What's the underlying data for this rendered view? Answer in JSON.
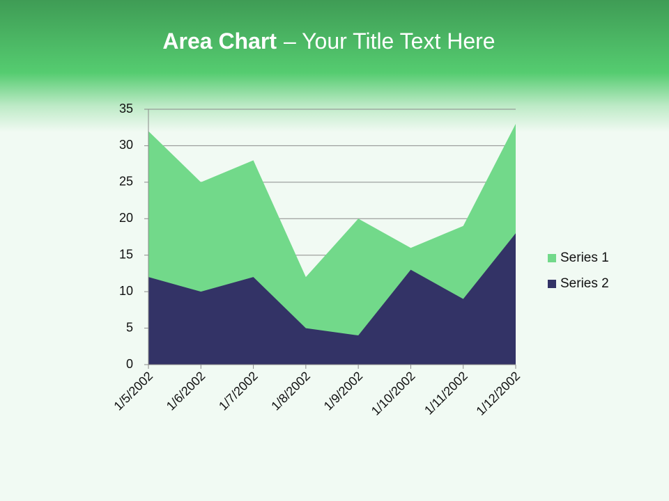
{
  "chart_data": {
    "type": "area",
    "title_parts": [
      "Area Chart",
      "– Your Title Text Here"
    ],
    "categories": [
      "1/5/2002",
      "1/6/2002",
      "1/7/2002",
      "1/8/2002",
      "1/9/2002",
      "1/10/2002",
      "1/11/2002",
      "1/12/2002"
    ],
    "series": [
      {
        "name": "Series 1",
        "color": "#72d98a",
        "values": [
          32,
          25,
          28,
          12,
          20,
          16,
          19,
          33
        ]
      },
      {
        "name": "Series 2",
        "color": "#333366",
        "values": [
          12,
          10,
          12,
          5,
          4,
          13,
          9,
          18
        ]
      }
    ],
    "ylim": [
      0,
      35
    ],
    "yticks": [
      0,
      5,
      10,
      15,
      20,
      25,
      30,
      35
    ],
    "grid": true,
    "legend": "right"
  }
}
